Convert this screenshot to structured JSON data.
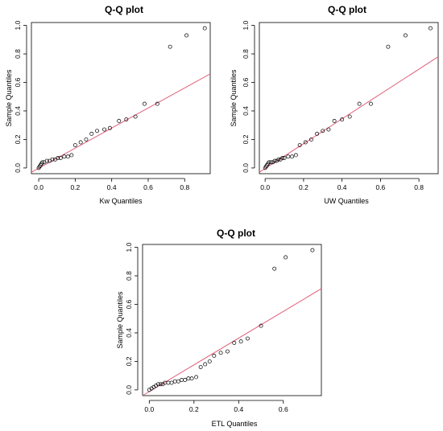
{
  "chart_data": [
    {
      "type": "scatter",
      "title": "Q-Q plot",
      "xlabel": "Kw Quantiles",
      "ylabel": "Sample Quantiles",
      "xlim": [
        -0.04,
        0.94
      ],
      "ylim": [
        -0.04,
        1.02
      ],
      "xticks": [
        0.0,
        0.2,
        0.4,
        0.6,
        0.8
      ],
      "xtick_labels": [
        "0.0",
        "0.2",
        "0.4",
        "0.6",
        "0.8"
      ],
      "yticks": [
        0.0,
        0.2,
        0.4,
        0.6,
        0.8,
        1.0
      ],
      "ytick_labels": [
        "0.0",
        "0.2",
        "0.4",
        "0.6",
        "0.8",
        "1.0"
      ],
      "grid": false,
      "point_color": "#000000",
      "reference_line": {
        "x": [
          -0.04,
          0.94
        ],
        "y": [
          -0.03,
          0.66
        ],
        "color": "#e0607a"
      },
      "points": {
        "x": [
          0.0,
          0.005,
          0.01,
          0.015,
          0.02,
          0.03,
          0.045,
          0.06,
          0.075,
          0.09,
          0.105,
          0.12,
          0.14,
          0.16,
          0.18,
          0.2,
          0.23,
          0.26,
          0.29,
          0.32,
          0.36,
          0.39,
          0.44,
          0.48,
          0.53,
          0.58,
          0.65,
          0.72,
          0.81,
          0.91
        ],
        "y": [
          0.0,
          0.01,
          0.02,
          0.03,
          0.04,
          0.04,
          0.05,
          0.05,
          0.06,
          0.06,
          0.07,
          0.07,
          0.08,
          0.08,
          0.09,
          0.16,
          0.18,
          0.2,
          0.24,
          0.26,
          0.27,
          0.28,
          0.33,
          0.34,
          0.36,
          0.45,
          0.45,
          0.85,
          0.93,
          0.98
        ]
      }
    },
    {
      "type": "scatter",
      "title": "Q-Q plot",
      "xlabel": "UW Quantiles",
      "ylabel": "Sample Quantiles",
      "xlim": [
        -0.03,
        0.9
      ],
      "ylim": [
        -0.04,
        1.02
      ],
      "xticks": [
        0.0,
        0.2,
        0.4,
        0.6,
        0.8
      ],
      "xtick_labels": [
        "0.0",
        "0.2",
        "0.4",
        "0.6",
        "0.8"
      ],
      "yticks": [
        0.0,
        0.2,
        0.4,
        0.6,
        0.8,
        1.0
      ],
      "ytick_labels": [
        "0.0",
        "0.2",
        "0.4",
        "0.6",
        "0.8",
        "1.0"
      ],
      "grid": false,
      "point_color": "#000000",
      "reference_line": {
        "x": [
          -0.03,
          0.9
        ],
        "y": [
          -0.03,
          0.78
        ],
        "color": "#e0607a"
      },
      "points": {
        "x": [
          0.0,
          0.005,
          0.01,
          0.015,
          0.02,
          0.03,
          0.04,
          0.05,
          0.06,
          0.07,
          0.08,
          0.09,
          0.1,
          0.12,
          0.14,
          0.16,
          0.18,
          0.21,
          0.24,
          0.27,
          0.3,
          0.33,
          0.36,
          0.4,
          0.44,
          0.49,
          0.55,
          0.64,
          0.73,
          0.86
        ],
        "y": [
          0.0,
          0.01,
          0.02,
          0.03,
          0.04,
          0.04,
          0.04,
          0.05,
          0.05,
          0.06,
          0.06,
          0.07,
          0.07,
          0.08,
          0.08,
          0.09,
          0.16,
          0.18,
          0.2,
          0.24,
          0.26,
          0.27,
          0.33,
          0.34,
          0.36,
          0.45,
          0.45,
          0.85,
          0.93,
          0.98
        ]
      }
    },
    {
      "type": "scatter",
      "title": "Q-Q plot",
      "xlabel": "ETL Quantiles",
      "ylabel": "Sample Quantiles",
      "xlim": [
        -0.03,
        0.77
      ],
      "ylim": [
        -0.04,
        1.02
      ],
      "xticks": [
        0.0,
        0.2,
        0.4,
        0.6
      ],
      "xtick_labels": [
        "0.0",
        "0.2",
        "0.4",
        "0.6"
      ],
      "yticks": [
        0.0,
        0.2,
        0.4,
        0.6,
        0.8,
        1.0
      ],
      "ytick_labels": [
        "0.0",
        "0.2",
        "0.4",
        "0.6",
        "0.8",
        "1.0"
      ],
      "grid": false,
      "point_color": "#000000",
      "reference_line": {
        "x": [
          -0.03,
          0.77
        ],
        "y": [
          -0.04,
          0.71
        ],
        "color": "#e0607a"
      },
      "points": {
        "x": [
          0.0,
          0.01,
          0.02,
          0.03,
          0.04,
          0.05,
          0.06,
          0.07,
          0.085,
          0.1,
          0.115,
          0.13,
          0.145,
          0.16,
          0.175,
          0.19,
          0.21,
          0.23,
          0.25,
          0.27,
          0.29,
          0.32,
          0.35,
          0.38,
          0.41,
          0.44,
          0.5,
          0.56,
          0.61,
          0.73
        ],
        "y": [
          0.0,
          0.01,
          0.02,
          0.03,
          0.04,
          0.04,
          0.04,
          0.05,
          0.05,
          0.05,
          0.06,
          0.06,
          0.07,
          0.07,
          0.08,
          0.08,
          0.09,
          0.16,
          0.18,
          0.2,
          0.24,
          0.26,
          0.27,
          0.33,
          0.34,
          0.36,
          0.45,
          0.85,
          0.93,
          0.98
        ]
      }
    }
  ]
}
